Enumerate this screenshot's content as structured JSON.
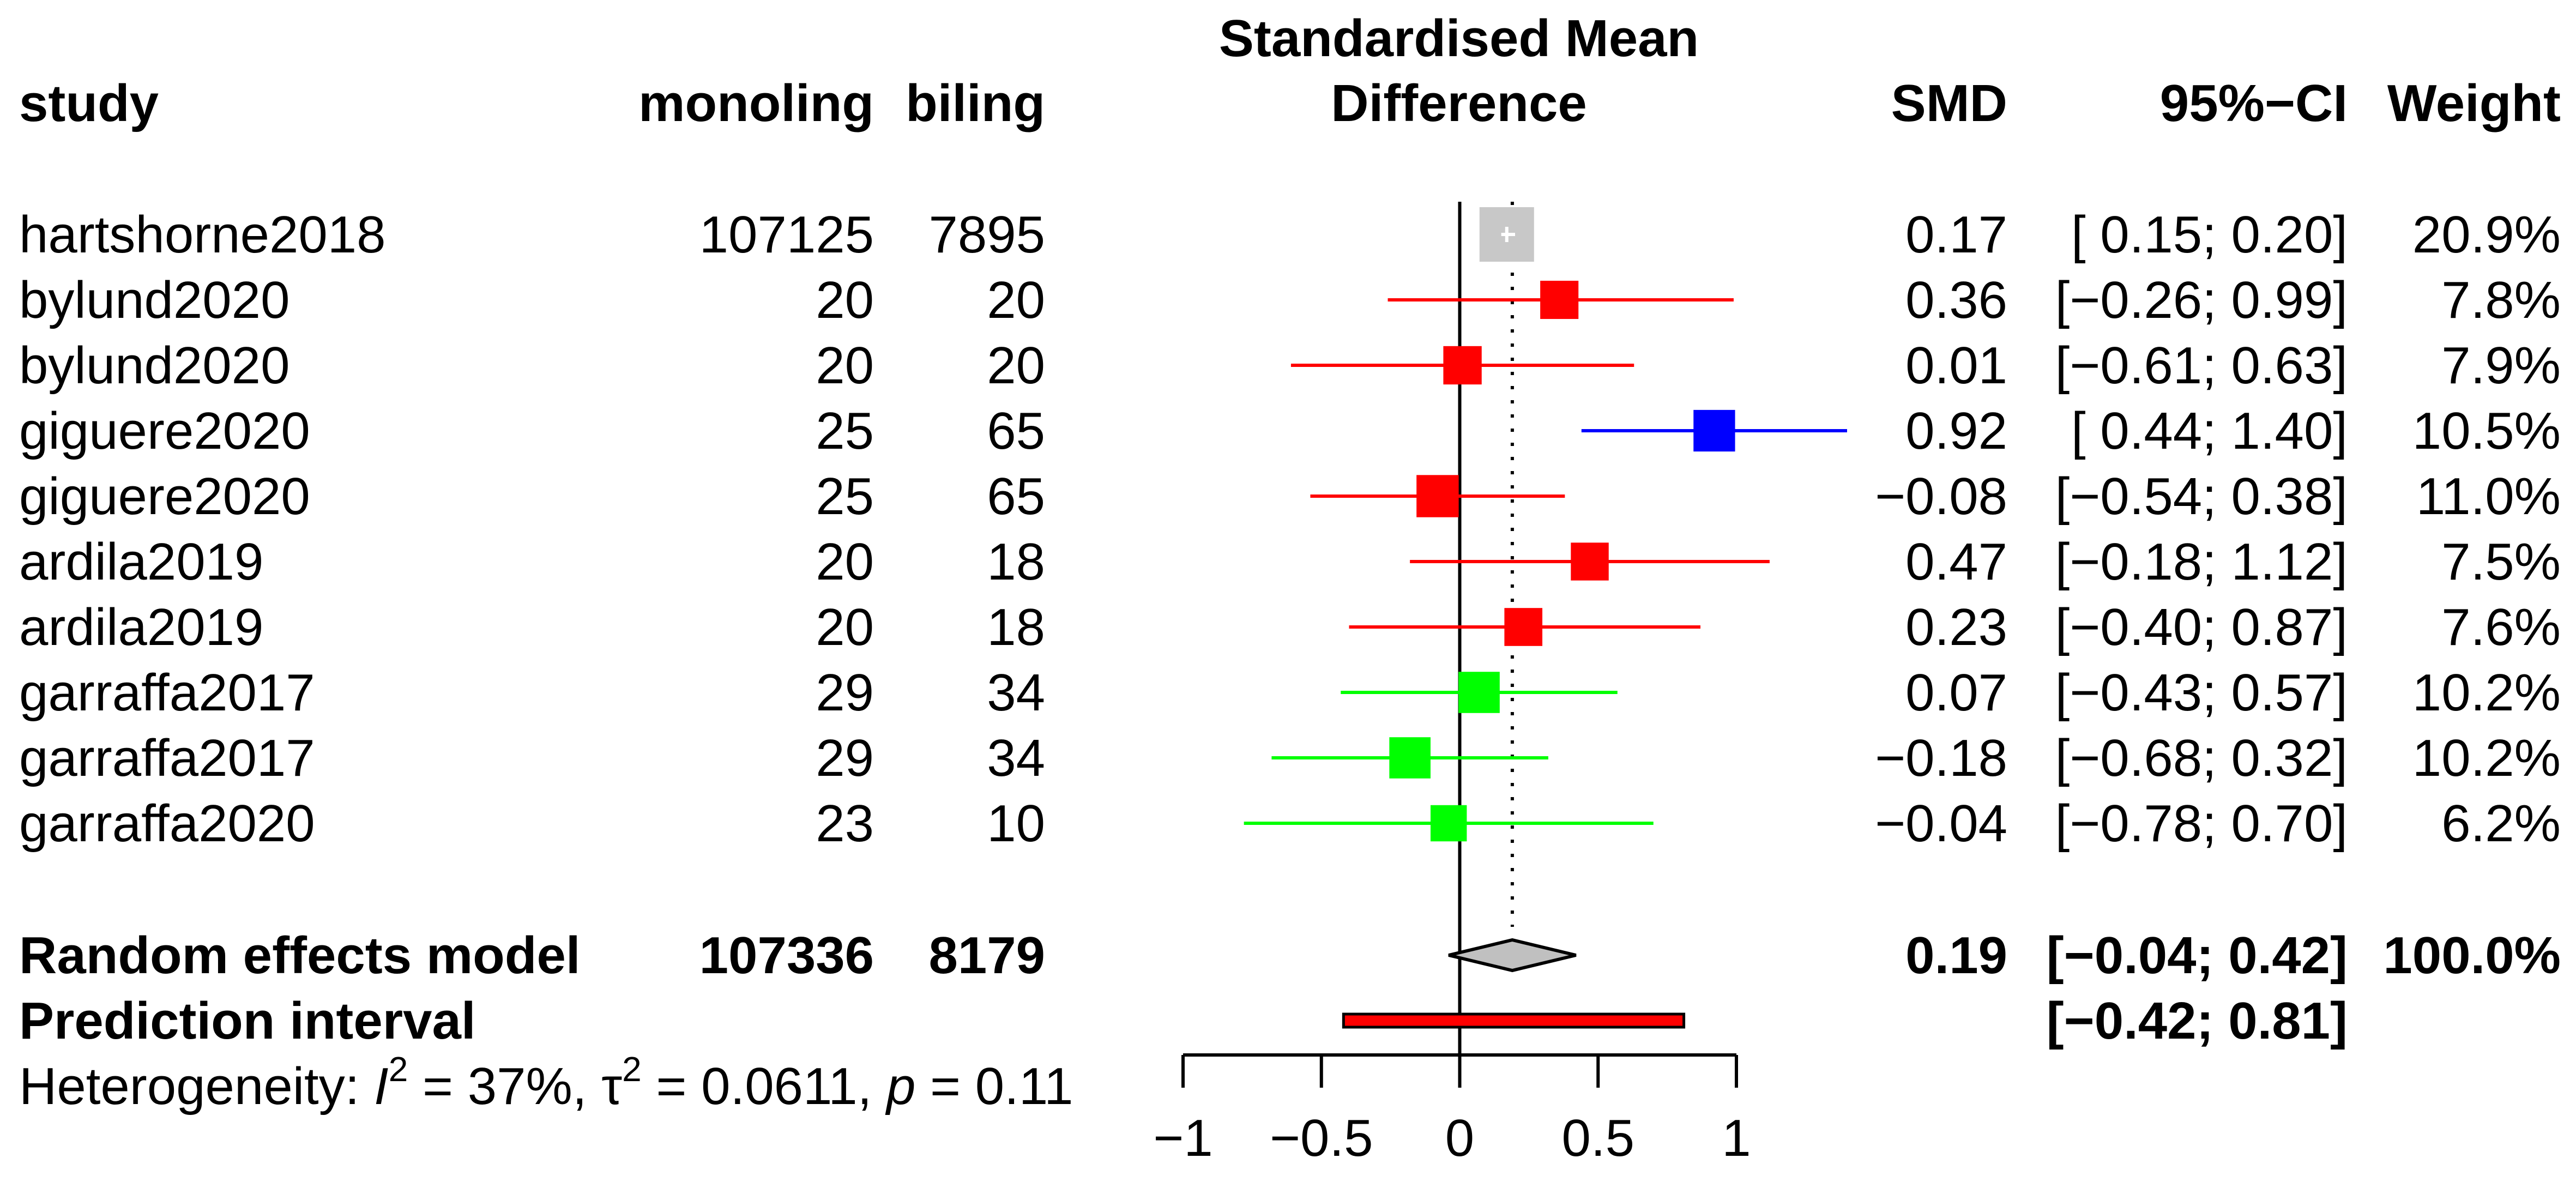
{
  "chart_data": {
    "type": "forest",
    "headers": {
      "study": "study",
      "n1": "monoling",
      "n2": "biling",
      "plot_title_line1": "Standardised Mean",
      "plot_title_line2": "Difference",
      "smd": "SMD",
      "ci": "95%−CI",
      "weight": "Weight"
    },
    "studies": [
      {
        "study": "hartshorne2018",
        "n1": "107125",
        "n2": "7895",
        "smd": 0.17,
        "lower": 0.15,
        "upper": 0.2,
        "smd_label": "0.17",
        "ci_label": "[ 0.15; 0.20]",
        "weight_label": "20.9%",
        "color": "#c8c8c8"
      },
      {
        "study": "bylund2020",
        "n1": "20",
        "n2": "20",
        "smd": 0.36,
        "lower": -0.26,
        "upper": 0.99,
        "smd_label": "0.36",
        "ci_label": "[−0.26; 0.99]",
        "weight_label": "7.8%",
        "color": "#ff0000"
      },
      {
        "study": "bylund2020",
        "n1": "20",
        "n2": "20",
        "smd": 0.01,
        "lower": -0.61,
        "upper": 0.63,
        "smd_label": "0.01",
        "ci_label": "[−0.61; 0.63]",
        "weight_label": "7.9%",
        "color": "#ff0000"
      },
      {
        "study": "giguere2020",
        "n1": "25",
        "n2": "65",
        "smd": 0.92,
        "lower": 0.44,
        "upper": 1.4,
        "smd_label": "0.92",
        "ci_label": "[ 0.44; 1.40]",
        "weight_label": "10.5%",
        "color": "#0000ff"
      },
      {
        "study": "giguere2020",
        "n1": "25",
        "n2": "65",
        "smd": -0.08,
        "lower": -0.54,
        "upper": 0.38,
        "smd_label": "−0.08",
        "ci_label": "[−0.54; 0.38]",
        "weight_label": "11.0%",
        "color": "#ff0000"
      },
      {
        "study": "ardila2019",
        "n1": "20",
        "n2": "18",
        "smd": 0.47,
        "lower": -0.18,
        "upper": 1.12,
        "smd_label": "0.47",
        "ci_label": "[−0.18; 1.12]",
        "weight_label": "7.5%",
        "color": "#ff0000"
      },
      {
        "study": "ardila2019",
        "n1": "20",
        "n2": "18",
        "smd": 0.23,
        "lower": -0.4,
        "upper": 0.87,
        "smd_label": "0.23",
        "ci_label": "[−0.40; 0.87]",
        "weight_label": "7.6%",
        "color": "#ff0000"
      },
      {
        "study": "garraffa2017",
        "n1": "29",
        "n2": "34",
        "smd": 0.07,
        "lower": -0.43,
        "upper": 0.57,
        "smd_label": "0.07",
        "ci_label": "[−0.43; 0.57]",
        "weight_label": "10.2%",
        "color": "#00ff00"
      },
      {
        "study": "garraffa2017",
        "n1": "29",
        "n2": "34",
        "smd": -0.18,
        "lower": -0.68,
        "upper": 0.32,
        "smd_label": "−0.18",
        "ci_label": "[−0.68; 0.32]",
        "weight_label": "10.2%",
        "color": "#00ff00"
      },
      {
        "study": "garraffa2020",
        "n1": "23",
        "n2": "10",
        "smd": -0.04,
        "lower": -0.78,
        "upper": 0.7,
        "smd_label": "−0.04",
        "ci_label": "[−0.78; 0.70]",
        "weight_label": "6.2%",
        "color": "#00ff00"
      }
    ],
    "random_effects": {
      "label": "Random effects model",
      "n1": "107336",
      "n2": "8179",
      "smd": 0.19,
      "lower": -0.04,
      "upper": 0.42,
      "smd_label": "0.19",
      "ci_label": "[−0.04; 0.42]",
      "weight_label": "100.0%",
      "color": "#c0c0c0"
    },
    "prediction_interval": {
      "label": "Prediction interval",
      "lower": -0.42,
      "upper": 0.81,
      "ci_label": "[−0.42; 0.81]",
      "color": "#ff0000"
    },
    "heterogeneity": {
      "prefix": "Heterogeneity: ",
      "i2_symbol": "I",
      "sq": "2",
      "i2_value": " = 37%, ",
      "tau_symbol": "τ",
      "tau_value": " = 0.0611, ",
      "p_symbol": "p",
      "p_value": " = 0.11"
    },
    "axis": {
      "xlim": [
        -1,
        1
      ],
      "ticks": [
        -1,
        -0.5,
        0,
        0.5,
        1
      ],
      "tick_labels": [
        "−1",
        "−0.5",
        "0",
        "0.5",
        "1"
      ],
      "reference_line": 0
    }
  }
}
